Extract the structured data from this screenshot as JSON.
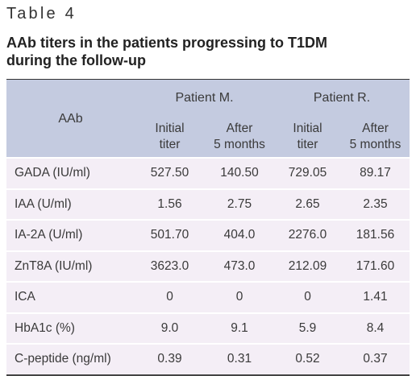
{
  "table_label": "Table 4",
  "title": "AAb titers in the patients progressing to T1DM during the follow-up",
  "header": {
    "aab": "AAb",
    "patient_m": "Patient M.",
    "patient_r": "Patient R.",
    "sub": [
      {
        "line1": "Initial",
        "line2": "titer"
      },
      {
        "line1": "After",
        "line2": "5 months"
      },
      {
        "line1": "Initial",
        "line2": "titer"
      },
      {
        "line1": "After",
        "line2": "5 months"
      }
    ]
  },
  "rows": [
    {
      "label": "GADA (IU/ml)",
      "values": [
        "527.50",
        "140.50",
        "729.05",
        "89.17"
      ]
    },
    {
      "label": "IAA (U/ml)",
      "values": [
        "1.56",
        "2.75",
        "2.65",
        "2.35"
      ]
    },
    {
      "label": "IA-2A (U/ml)",
      "values": [
        "501.70",
        "404.0",
        "2276.0",
        "181.56"
      ]
    },
    {
      "label": "ZnT8A (IU/ml)",
      "values": [
        "3623.0",
        "473.0",
        "212.09",
        "171.60"
      ]
    },
    {
      "label": "ICA",
      "values": [
        "0",
        "0",
        "0",
        "1.41"
      ]
    },
    {
      "label": "HbA1c (%)",
      "values": [
        "9.0",
        "9.1",
        "5.9",
        "8.4"
      ]
    },
    {
      "label": "C-peptide (ng/ml)",
      "values": [
        "0.39",
        "0.31",
        "0.52",
        "0.37"
      ]
    }
  ],
  "colors": {
    "header_bg": "#c4cbe0",
    "row_bg": "#f4eef6",
    "text": "#333333"
  }
}
